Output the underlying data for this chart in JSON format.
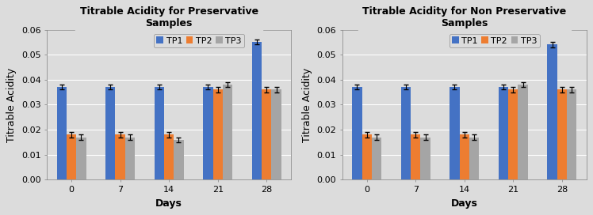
{
  "chart1": {
    "title": "Titrable Acidity for Preservative\nSamples",
    "days": [
      0,
      7,
      14,
      21,
      28
    ],
    "TP1": [
      0.037,
      0.037,
      0.037,
      0.037,
      0.055
    ],
    "TP2": [
      0.018,
      0.018,
      0.018,
      0.036,
      0.036
    ],
    "TP3": [
      0.017,
      0.017,
      0.016,
      0.038,
      0.036
    ],
    "TP1_err": [
      0.001,
      0.001,
      0.001,
      0.001,
      0.001
    ],
    "TP2_err": [
      0.001,
      0.001,
      0.001,
      0.001,
      0.001
    ],
    "TP3_err": [
      0.001,
      0.001,
      0.001,
      0.001,
      0.001
    ]
  },
  "chart2": {
    "title": "Titrable Acidity for Non Preservative\nSamples",
    "days": [
      0,
      7,
      14,
      21,
      28
    ],
    "TP1": [
      0.037,
      0.037,
      0.037,
      0.037,
      0.054
    ],
    "TP2": [
      0.018,
      0.018,
      0.018,
      0.036,
      0.036
    ],
    "TP3": [
      0.017,
      0.017,
      0.017,
      0.038,
      0.036
    ],
    "TP1_err": [
      0.001,
      0.001,
      0.001,
      0.001,
      0.001
    ],
    "TP2_err": [
      0.001,
      0.001,
      0.001,
      0.001,
      0.001
    ],
    "TP3_err": [
      0.001,
      0.001,
      0.001,
      0.001,
      0.001
    ]
  },
  "colors": {
    "TP1": "#4472C4",
    "TP2": "#ED7D31",
    "TP3": "#A5A5A5"
  },
  "ylabel": "Titrable Acidity",
  "xlabel": "Days",
  "ylim": [
    0,
    0.06
  ],
  "yticks": [
    0,
    0.01,
    0.02,
    0.03,
    0.04,
    0.05,
    0.06
  ],
  "legend_labels": [
    "TP1",
    "TP2",
    "TP3"
  ],
  "bar_width": 0.2,
  "title_fontsize": 9,
  "label_fontsize": 9,
  "tick_fontsize": 8,
  "legend_fontsize": 8,
  "fig_facecolor": "#DCDCDC",
  "ax_facecolor": "#DCDCDC",
  "grid_color": "#FFFFFF",
  "spine_color": "#808080"
}
